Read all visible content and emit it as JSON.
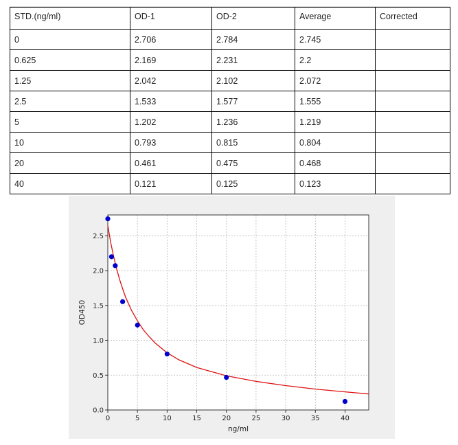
{
  "table": {
    "headers": [
      "STD.(ng/ml)",
      "OD-1",
      "OD-2",
      "Average",
      "Corrected"
    ],
    "rows": [
      [
        "0",
        "2.706",
        "2.784",
        "2.745",
        ""
      ],
      [
        "0.625",
        "2.169",
        "2.231",
        "2.2",
        ""
      ],
      [
        "1.25",
        "2.042",
        "2.102",
        "2.072",
        ""
      ],
      [
        "2.5",
        "1.533",
        "1.577",
        "1.555",
        ""
      ],
      [
        "5",
        "1.202",
        "1.236",
        "1.219",
        ""
      ],
      [
        "10",
        "0.793",
        "0.815",
        "0.804",
        ""
      ],
      [
        "20",
        "0.461",
        "0.475",
        "0.468",
        ""
      ],
      [
        "40",
        "0.121",
        "0.125",
        "0.123",
        ""
      ]
    ]
  },
  "chart_data": {
    "type": "scatter",
    "xlabel": "ng/ml",
    "ylabel": "OD450",
    "xlim": [
      0,
      44
    ],
    "ylim": [
      0,
      2.8
    ],
    "xticks": [
      0,
      5,
      10,
      15,
      20,
      25,
      30,
      35,
      40
    ],
    "yticks": [
      0.0,
      0.5,
      1.0,
      1.5,
      2.0,
      2.5
    ],
    "grid": true,
    "series": [
      {
        "kind": "points",
        "x": [
          0,
          0.625,
          1.25,
          2.5,
          5,
          10,
          20,
          40
        ],
        "y": [
          2.745,
          2.2,
          2.072,
          1.555,
          1.219,
          0.804,
          0.468,
          0.123
        ],
        "color": "#0000cc"
      },
      {
        "kind": "fit-curve",
        "x": [
          0,
          0.5,
          1,
          1.5,
          2,
          2.5,
          3,
          4,
          5,
          6,
          7,
          8,
          10,
          12,
          15,
          20,
          25,
          30,
          35,
          40,
          44
        ],
        "y": [
          2.65,
          2.4,
          2.2,
          2.02,
          1.87,
          1.74,
          1.62,
          1.43,
          1.28,
          1.15,
          1.05,
          0.96,
          0.82,
          0.72,
          0.61,
          0.49,
          0.41,
          0.35,
          0.3,
          0.26,
          0.23
        ],
        "color": "#dd1111"
      }
    ]
  }
}
